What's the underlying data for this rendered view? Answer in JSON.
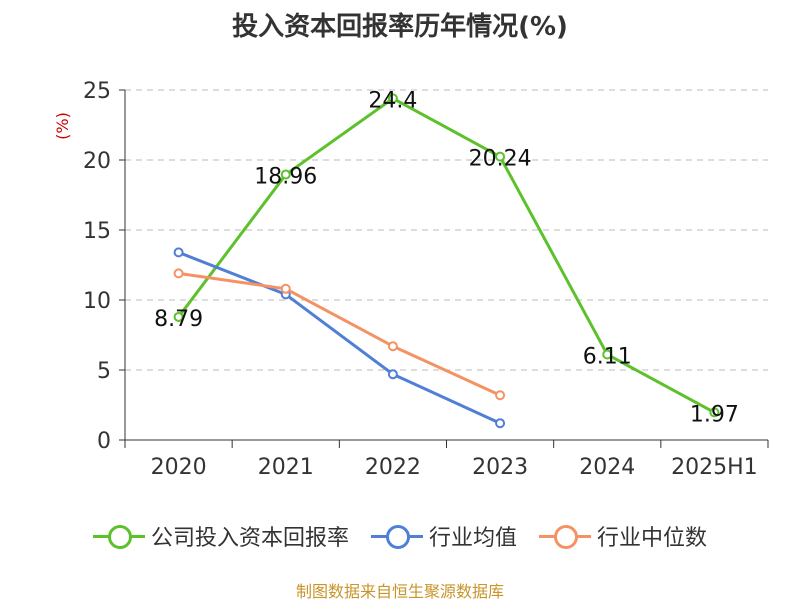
{
  "title": "投入资本回报率历年情况(%)",
  "source": "制图数据来自恒生聚源数据库",
  "colors": {
    "company": "#5cc12b",
    "industry_avg": "#4f7fd6",
    "industry_median": "#f59263",
    "unit": "#cc0000",
    "grid": "#bbbbbb",
    "source": "#c8952a"
  },
  "chart_data": {
    "type": "line",
    "title": "投入资本回报率历年情况(%)",
    "ylabel": "(%)",
    "xlabel": "",
    "categories": [
      "2020",
      "2021",
      "2022",
      "2023",
      "2024",
      "2025H1"
    ],
    "ylim": [
      0,
      25
    ],
    "yticks": [
      0,
      5,
      10,
      15,
      20,
      25
    ],
    "ytick_labels": [
      "0",
      "5",
      "10",
      "15",
      "20",
      "25"
    ],
    "grid": true,
    "legend_position": "bottom",
    "series": [
      {
        "name": "公司投入资本回报率",
        "color": "#5cc12b",
        "values": [
          8.79,
          18.96,
          24.4,
          20.24,
          6.11,
          1.97
        ],
        "labels": [
          "8.79",
          "18.96",
          "24.4",
          "20.24",
          "6.11",
          "1.97"
        ]
      },
      {
        "name": "行业均值",
        "color": "#4f7fd6",
        "values": [
          13.4,
          10.4,
          4.7,
          1.2,
          null,
          null
        ]
      },
      {
        "name": "行业中位数",
        "color": "#f59263",
        "values": [
          11.9,
          10.8,
          6.7,
          3.2,
          null,
          null
        ]
      }
    ]
  }
}
